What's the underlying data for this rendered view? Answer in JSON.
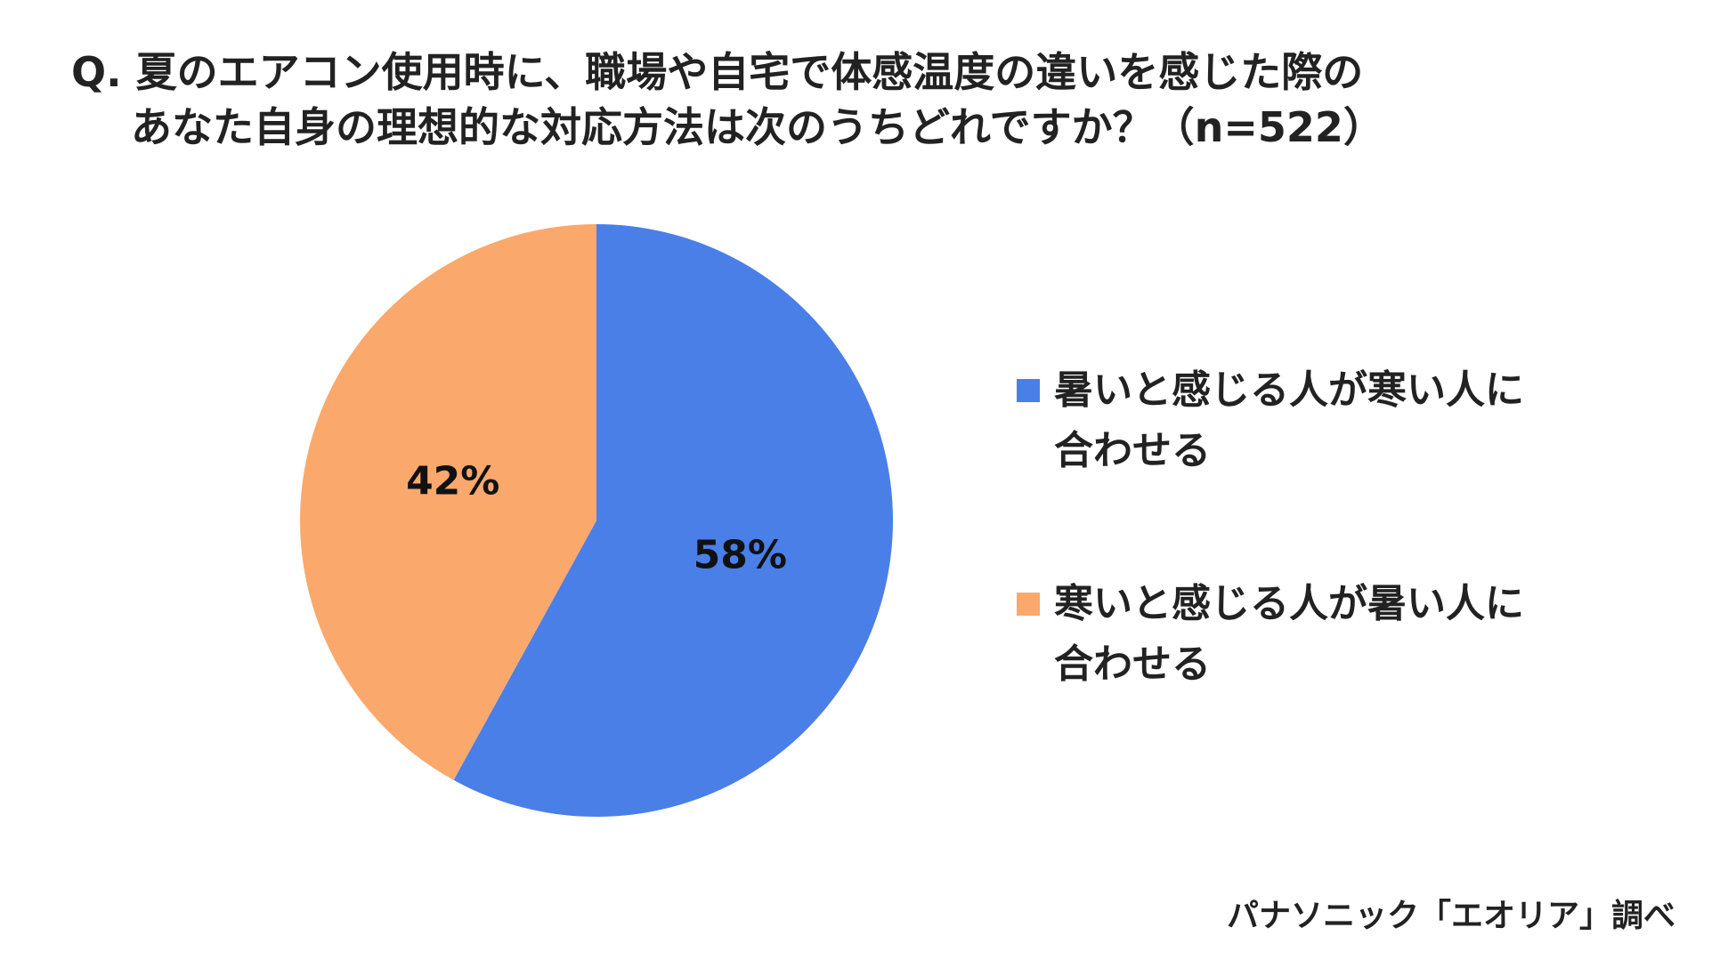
{
  "title": {
    "line1": "Q. 夏のエアコン使用時に、職場や自宅で体感温度の違いを感じた際の",
    "line2": "あなた自身の理想的な対応方法は次のうちどれですか？（n=522）"
  },
  "chart_data": {
    "type": "pie",
    "categories": [
      "暑いと感じる人が寒い人に合わせる",
      "寒いと感じる人が暑い人に合わせる"
    ],
    "values": [
      58,
      42
    ],
    "data_labels": [
      "58%",
      "42%"
    ],
    "colors": [
      "#4A7FE8",
      "#FBA86C"
    ],
    "legend_position": "right"
  },
  "legend": {
    "items": [
      {
        "line1": "暑いと感じる人が寒い人に",
        "line2": "合わせる",
        "color": "#4A7FE8"
      },
      {
        "line1": "寒いと感じる人が暑い人に",
        "line2": "合わせる",
        "color": "#FBA86C"
      }
    ]
  },
  "source": "パナソニック「エオリア」調べ"
}
